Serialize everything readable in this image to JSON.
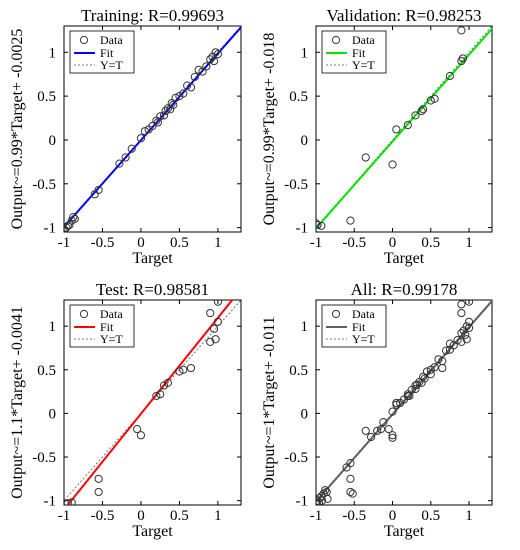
{
  "chart_data": [
    {
      "type": "scatter",
      "title": "Training: R=0.99693",
      "xlabel": "Target",
      "ylabel": "Output~=0.99*Target+ -0.0025",
      "xlim": [
        -1,
        1.3
      ],
      "ylim": [
        -1.05,
        1.3
      ],
      "xticks": [
        "-1",
        "-0.5",
        "0",
        "0.5",
        "1"
      ],
      "yticks": [
        "-1",
        "-0.5",
        "0",
        "0.5",
        "1"
      ],
      "legend": [
        "Data",
        "Fit",
        "Y=T"
      ],
      "legend_position": "top-left",
      "fit": {
        "slope": 0.99,
        "intercept": -0.0025,
        "color": "#0000ff"
      },
      "points": [
        [
          -1,
          -1.02
        ],
        [
          -0.97,
          -1.0
        ],
        [
          -0.95,
          -0.98
        ],
        [
          -0.93,
          -0.97
        ],
        [
          -0.9,
          -0.92
        ],
        [
          -0.88,
          -0.88
        ],
        [
          -0.86,
          -0.9
        ],
        [
          -0.6,
          -0.62
        ],
        [
          -0.55,
          -0.57
        ],
        [
          -0.28,
          -0.27
        ],
        [
          -0.2,
          -0.2
        ],
        [
          -0.12,
          -0.1
        ],
        [
          0,
          0.02
        ],
        [
          0.05,
          0.1
        ],
        [
          0.1,
          0.12
        ],
        [
          0.15,
          0.16
        ],
        [
          0.2,
          0.22
        ],
        [
          0.22,
          0.2
        ],
        [
          0.25,
          0.27
        ],
        [
          0.3,
          0.28
        ],
        [
          0.32,
          0.33
        ],
        [
          0.35,
          0.36
        ],
        [
          0.38,
          0.35
        ],
        [
          0.4,
          0.42
        ],
        [
          0.42,
          0.4
        ],
        [
          0.45,
          0.48
        ],
        [
          0.5,
          0.5
        ],
        [
          0.55,
          0.53
        ],
        [
          0.6,
          0.62
        ],
        [
          0.65,
          0.6
        ],
        [
          0.7,
          0.72
        ],
        [
          0.75,
          0.8
        ],
        [
          0.8,
          0.78
        ],
        [
          0.85,
          0.84
        ],
        [
          0.9,
          0.92
        ],
        [
          0.93,
          0.95
        ],
        [
          0.95,
          0.9
        ],
        [
          0.97,
          1.0
        ],
        [
          1.0,
          0.98
        ]
      ]
    },
    {
      "type": "scatter",
      "title": "Validation: R=0.98253",
      "xlabel": "Target",
      "ylabel": "Output~=0.99*Target+ -0.018",
      "xlim": [
        -1,
        1.3
      ],
      "ylim": [
        -1.05,
        1.3
      ],
      "xticks": [
        "-1",
        "-0.5",
        "0",
        "0.5",
        "1"
      ],
      "yticks": [
        "-1",
        "-0.5",
        "0",
        "0.5",
        "1"
      ],
      "legend": [
        "Data",
        "Fit",
        "Y=T"
      ],
      "legend_position": "top-left",
      "fit": {
        "slope": 0.99,
        "intercept": -0.018,
        "color": "#00e600"
      },
      "points": [
        [
          -1,
          -0.95
        ],
        [
          -0.98,
          -0.97
        ],
        [
          -0.93,
          -0.98
        ],
        [
          -0.55,
          -0.92
        ],
        [
          -0.35,
          -0.2
        ],
        [
          0,
          -0.28
        ],
        [
          0.05,
          0.12
        ],
        [
          0.2,
          0.17
        ],
        [
          0.3,
          0.28
        ],
        [
          0.38,
          0.33
        ],
        [
          0.4,
          0.35
        ],
        [
          0.5,
          0.45
        ],
        [
          0.55,
          0.47
        ],
        [
          0.75,
          0.73
        ],
        [
          0.9,
          0.9
        ],
        [
          0.92,
          0.93
        ],
        [
          0.9,
          1.25
        ]
      ]
    },
    {
      "type": "scatter",
      "title": "Test: R=0.98581",
      "xlabel": "Target",
      "ylabel": "Output~=1.1*Target+ -0.0041",
      "xlim": [
        -1,
        1.3
      ],
      "ylim": [
        -1.05,
        1.3
      ],
      "xticks": [
        "-1",
        "-0.5",
        "0",
        "0.5",
        "1"
      ],
      "yticks": [
        "-1",
        "-0.5",
        "0",
        "0.5",
        "1"
      ],
      "legend": [
        "Data",
        "Fit",
        "Y=T"
      ],
      "legend_position": "top-left",
      "fit": {
        "slope": 1.1,
        "intercept": -0.0041,
        "color": "#ff0000"
      },
      "points": [
        [
          -0.95,
          -1.03
        ],
        [
          -0.9,
          -1.02
        ],
        [
          -0.55,
          -0.9
        ],
        [
          -0.55,
          -0.75
        ],
        [
          -0.05,
          -0.18
        ],
        [
          0,
          -0.25
        ],
        [
          0.2,
          0.2
        ],
        [
          0.25,
          0.22
        ],
        [
          0.3,
          0.32
        ],
        [
          0.35,
          0.35
        ],
        [
          0.5,
          0.48
        ],
        [
          0.55,
          0.5
        ],
        [
          0.65,
          0.52
        ],
        [
          0.9,
          0.82
        ],
        [
          0.9,
          1.15
        ],
        [
          0.97,
          0.85
        ],
        [
          1.0,
          1.05
        ],
        [
          1.0,
          1.28
        ],
        [
          0.95,
          0.97
        ]
      ]
    },
    {
      "type": "scatter",
      "title": "All: R=0.99178",
      "xlabel": "Target",
      "ylabel": "Output~=1*Target+ -0.011",
      "xlim": [
        -1,
        1.3
      ],
      "ylim": [
        -1.05,
        1.3
      ],
      "xticks": [
        "-1",
        "-0.5",
        "0",
        "0.5",
        "1"
      ],
      "yticks": [
        "-1",
        "-0.5",
        "0",
        "0.5",
        "1"
      ],
      "legend": [
        "Data",
        "Fit",
        "Y=T"
      ],
      "legend_position": "top-left",
      "fit": {
        "slope": 1.0,
        "intercept": -0.011,
        "color": "#606060"
      },
      "points": [
        [
          -1,
          -1.02
        ],
        [
          -0.98,
          -1.0
        ],
        [
          -0.96,
          -1.03
        ],
        [
          -0.95,
          -0.97
        ],
        [
          -0.93,
          -0.95
        ],
        [
          -0.92,
          -1.0
        ],
        [
          -0.9,
          -0.92
        ],
        [
          -0.88,
          -0.88
        ],
        [
          -0.86,
          -0.9
        ],
        [
          -0.85,
          -0.98
        ],
        [
          -0.6,
          -0.62
        ],
        [
          -0.55,
          -0.75
        ],
        [
          -0.55,
          -0.9
        ],
        [
          -0.55,
          -0.57
        ],
        [
          -0.52,
          -0.92
        ],
        [
          -0.35,
          -0.2
        ],
        [
          -0.28,
          -0.27
        ],
        [
          -0.2,
          -0.2
        ],
        [
          -0.15,
          -0.18
        ],
        [
          -0.12,
          -0.1
        ],
        [
          -0.05,
          -0.18
        ],
        [
          0,
          0.02
        ],
        [
          0,
          -0.25
        ],
        [
          0,
          -0.28
        ],
        [
          0.05,
          0.1
        ],
        [
          0.05,
          0.12
        ],
        [
          0.1,
          0.12
        ],
        [
          0.15,
          0.16
        ],
        [
          0.2,
          0.2
        ],
        [
          0.2,
          0.22
        ],
        [
          0.22,
          0.2
        ],
        [
          0.25,
          0.27
        ],
        [
          0.3,
          0.28
        ],
        [
          0.3,
          0.32
        ],
        [
          0.32,
          0.33
        ],
        [
          0.35,
          0.36
        ],
        [
          0.38,
          0.35
        ],
        [
          0.4,
          0.42
        ],
        [
          0.42,
          0.4
        ],
        [
          0.45,
          0.48
        ],
        [
          0.5,
          0.5
        ],
        [
          0.5,
          0.45
        ],
        [
          0.55,
          0.53
        ],
        [
          0.6,
          0.62
        ],
        [
          0.65,
          0.6
        ],
        [
          0.65,
          0.52
        ],
        [
          0.7,
          0.72
        ],
        [
          0.75,
          0.8
        ],
        [
          0.75,
          0.73
        ],
        [
          0.8,
          0.78
        ],
        [
          0.85,
          0.84
        ],
        [
          0.9,
          0.92
        ],
        [
          0.9,
          0.82
        ],
        [
          0.9,
          1.15
        ],
        [
          0.93,
          0.95
        ],
        [
          0.95,
          0.9
        ],
        [
          0.97,
          1.0
        ],
        [
          0.97,
          0.85
        ],
        [
          1.0,
          0.98
        ],
        [
          1.0,
          1.05
        ],
        [
          0.9,
          1.25
        ],
        [
          1.0,
          1.28
        ]
      ]
    }
  ]
}
